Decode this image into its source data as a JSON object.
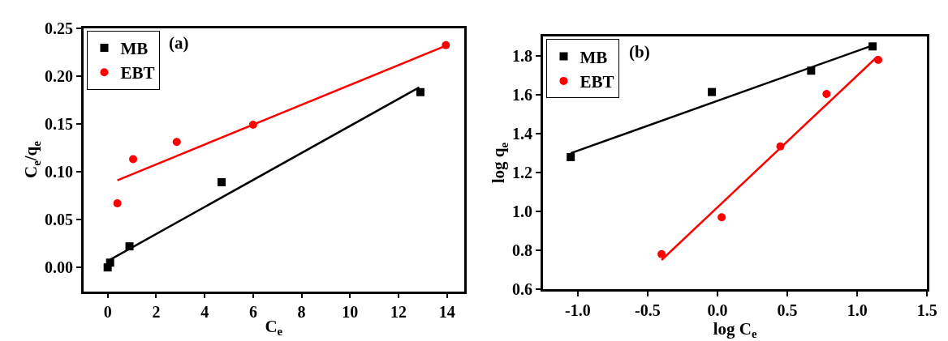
{
  "chart_data": [
    {
      "type": "scatter",
      "xlabel": "C$_{e}$",
      "ylabel": "C$_{e}$/q$_{e}$",
      "annotations": [
        "(a)"
      ],
      "legend": "top left",
      "xlim": [
        -1.0,
        14.7
      ],
      "xticks": [
        0,
        2,
        4,
        6,
        8,
        10,
        12,
        14
      ],
      "ylim": [
        -0.025,
        0.25
      ],
      "yticks": [
        {
          "value": 0,
          "label": "0.00"
        },
        {
          "value": 0.05,
          "label": "0.05"
        },
        {
          "value": 0.1,
          "label": "0.10"
        },
        {
          "value": 0.15,
          "label": "0.15"
        },
        {
          "value": 0.2,
          "label": "0.20"
        },
        0.25
      ],
      "series": [
        {
          "name": "MB",
          "color": "#000000",
          "marker": "square",
          "x": [
            0,
            0.1,
            0.9,
            4.7,
            12.9
          ],
          "values": [
            0,
            0.005,
            0.022,
            0.089,
            0.183
          ]
        },
        {
          "name": "EBT",
          "color": "#ff0000",
          "marker": "circle",
          "x": [
            0.4,
            1.05,
            2.85,
            6,
            13.95
          ],
          "values": [
            0.067,
            0.113,
            0.131,
            0.149,
            0.232
          ]
        },
        {
          "type": "line",
          "color": "#000000",
          "x": [
            0.1,
            12.85
          ],
          "values": [
            0.008,
            0.188
          ]
        },
        {
          "type": "line",
          "color": "#ff0000",
          "x": [
            0.4,
            14
          ],
          "values": [
            0.091,
            0.232
          ]
        }
      ]
    },
    {
      "type": "scatter",
      "xlabel": "log C$_{e}$",
      "ylabel": "log q$_{e}$",
      "annotations": [
        "(b)"
      ],
      "legend": "top left",
      "xlim": [
        -1.25,
        1.5
      ],
      "xticks": [
        {
          "value": -1,
          "label": "-1.0"
        },
        -0.5,
        {
          "value": 0,
          "label": "0.0"
        },
        0.5,
        {
          "value": 1,
          "label": "1.0"
        },
        1.5
      ],
      "ylim": [
        0.6,
        1.9
      ],
      "yticks": [
        0.6,
        0.8,
        {
          "value": 1,
          "label": "1.0"
        },
        1.2,
        1.4,
        1.6,
        1.8
      ],
      "series": [
        {
          "name": "MB",
          "color": "#000000",
          "marker": "square",
          "x": [
            -1.05,
            -0.04,
            0.67,
            1.11
          ],
          "values": [
            1.28,
            1.615,
            1.725,
            1.85
          ]
        },
        {
          "name": "EBT",
          "color": "#ff0000",
          "marker": "circle",
          "x": [
            -0.4,
            0.03,
            0.45,
            0.78,
            1.15
          ],
          "values": [
            0.78,
            0.97,
            1.335,
            1.605,
            1.78
          ]
        },
        {
          "type": "line",
          "color": "#000000",
          "x": [
            -1.05,
            1.11
          ],
          "values": [
            1.3,
            1.855
          ]
        },
        {
          "type": "line",
          "color": "#ff0000",
          "x": [
            -0.4,
            1.14
          ],
          "values": [
            0.75,
            1.795
          ]
        }
      ]
    }
  ]
}
